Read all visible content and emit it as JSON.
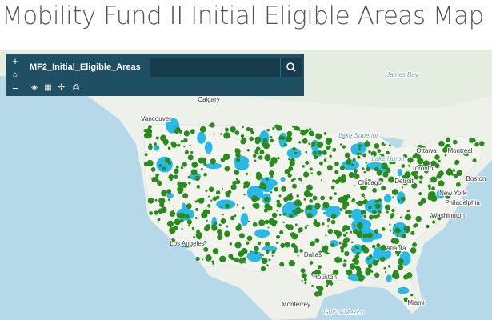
{
  "header": {
    "title": "Mobility Fund II Initial Eligible Areas Map"
  },
  "toolbar": {
    "layer_title": "MF2_Initial_Eligible_Areas"
  },
  "map": {
    "labels": [
      "Calgary",
      "Vancouver",
      "James Bay",
      "Lake Superior",
      "Ottawa",
      "Montréal",
      "Lake Huron",
      "Toronto",
      "Detroit",
      "Boston",
      "Chicago",
      "New York",
      "Philadelphia",
      "Washington",
      "Atlanta",
      "Dallas",
      "Houston",
      "Los Angeles",
      "Monterrey",
      "Miami",
      "Gulf of Mexico"
    ]
  }
}
